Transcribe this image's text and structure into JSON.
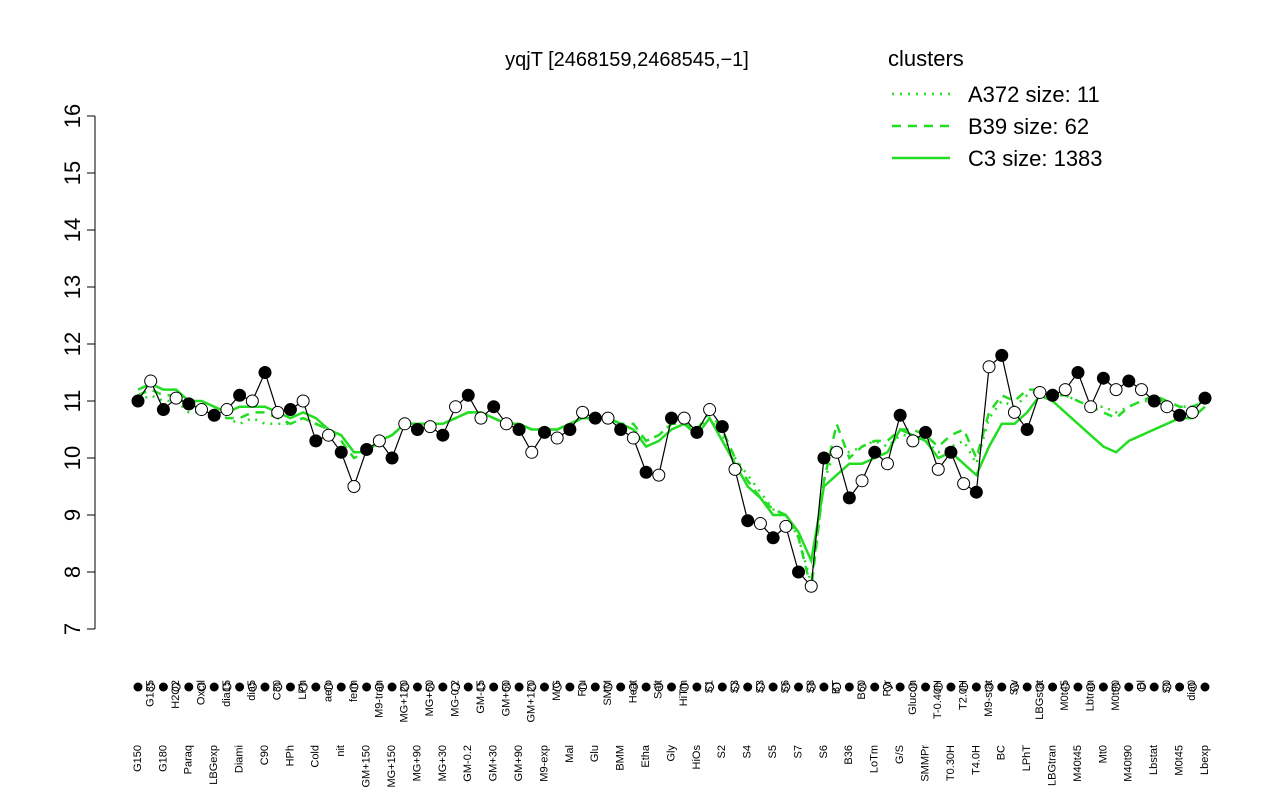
{
  "chart_data": {
    "type": "line",
    "title": "yqjT [2468159,2468545,−1]",
    "legend_title": "clusters",
    "legend_position": "top-right",
    "legend_color": "#22dd22",
    "point_colors": [
      "#000000",
      "#ffffff"
    ],
    "categories": [
      "G150",
      "G135",
      "G180",
      "H2O2",
      "Paraq",
      "Oxctl",
      "LBGexp",
      "dia15",
      "Diami",
      "dia5",
      "C90",
      "C30",
      "HPh",
      "LPh",
      "Cold",
      "aero",
      "nit",
      "ferm",
      "GM+150",
      "M9-tran",
      "MG+150",
      "MG+120",
      "MG+90",
      "MG+60",
      "MG+30",
      "MG-0.2",
      "GM-0.2",
      "GM-15",
      "GM+30",
      "GM+60",
      "GM+90",
      "GM+120",
      "M9-exp",
      "M/G",
      "Mal",
      "Fru",
      "Glu",
      "SMM",
      "BMM",
      "Heat",
      "Etha",
      "Salt",
      "Gly",
      "HiTm",
      "HiOs",
      "S1",
      "S2",
      "S3",
      "S4",
      "S3",
      "S5",
      "S6",
      "S7",
      "S8",
      "S6",
      "BT",
      "B36",
      "B60",
      "LoTm",
      "Pyr",
      "G/S",
      "Glucon",
      "SMMPr",
      "T-0.40H",
      "T0.30H",
      "T2.0H",
      "T4.0H",
      "M9-stat",
      "BC",
      "Sw",
      "LPhT",
      "LBGstat",
      "LBGtran",
      "M0t45",
      "M40t45",
      "Lbtran",
      "Mt0",
      "M0t90",
      "M40t90",
      "Bl",
      "Lbstat",
      "S0",
      "M0t45",
      "dia0",
      "Lbexp"
    ],
    "values": [
      11.0,
      11.35,
      10.85,
      11.05,
      10.95,
      10.85,
      10.75,
      10.85,
      11.1,
      11.0,
      11.5,
      10.8,
      10.85,
      11.0,
      10.3,
      10.4,
      10.1,
      9.5,
      10.15,
      10.3,
      10.0,
      10.6,
      10.5,
      10.55,
      10.4,
      10.9,
      11.1,
      10.7,
      10.9,
      10.6,
      10.5,
      10.1,
      10.45,
      10.35,
      10.5,
      10.8,
      10.7,
      10.7,
      10.5,
      10.35,
      9.75,
      9.7,
      10.7,
      10.7,
      10.45,
      10.85,
      10.55,
      9.8,
      8.9,
      8.85,
      8.6,
      8.8,
      8.0,
      7.75,
      10.0,
      10.1,
      9.3,
      9.6,
      10.1,
      9.9,
      10.75,
      10.3,
      10.45,
      9.8,
      10.1,
      9.55,
      9.4,
      11.6,
      11.8,
      10.8,
      10.5,
      11.15,
      11.1,
      11.2,
      11.5,
      10.9,
      11.4,
      11.2,
      11.35,
      11.2,
      11.0,
      10.9,
      10.75,
      10.8,
      11.05
    ],
    "series": [
      {
        "name": "A372 size: 11",
        "color": "#22dd22",
        "dash": "2,6",
        "values": [
          11.0,
          11.1,
          11.0,
          11.0,
          10.8,
          10.8,
          10.7,
          10.7,
          10.6,
          10.7,
          10.6,
          10.6,
          10.6,
          10.7,
          10.6,
          10.5,
          10.4,
          10.1,
          10.1,
          10.3,
          10.4,
          10.6,
          10.6,
          10.6,
          10.6,
          10.7,
          10.8,
          10.8,
          10.7,
          10.6,
          10.6,
          10.5,
          10.5,
          10.5,
          10.6,
          10.7,
          10.7,
          10.7,
          10.6,
          10.5,
          10.3,
          10.4,
          10.6,
          10.6,
          10.5,
          10.7,
          10.4,
          10.0,
          9.7,
          9.4,
          9.1,
          9.0,
          8.6,
          7.8,
          9.6,
          10.2,
          10.1,
          10.2,
          10.3,
          10.2,
          10.4,
          10.4,
          10.3,
          10.1,
          10.2,
          10.3,
          9.9,
          10.7,
          11.0,
          10.9,
          11.1,
          11.2,
          11.1,
          11.1,
          11.0,
          10.9,
          10.9,
          10.8,
          10.9,
          11.0,
          11.0,
          11.0,
          10.9,
          10.9,
          11.0
        ]
      },
      {
        "name": "B39 size: 62",
        "color": "#22dd22",
        "dash": "9,7",
        "values": [
          11.1,
          11.2,
          11.1,
          11.1,
          10.9,
          10.9,
          10.8,
          10.7,
          10.7,
          10.8,
          10.8,
          10.7,
          10.6,
          10.7,
          10.6,
          10.5,
          10.3,
          10.0,
          10.1,
          10.3,
          10.4,
          10.6,
          10.6,
          10.6,
          10.6,
          10.7,
          10.8,
          10.8,
          10.7,
          10.6,
          10.6,
          10.5,
          10.5,
          10.5,
          10.6,
          10.7,
          10.7,
          10.7,
          10.6,
          10.6,
          10.3,
          10.4,
          10.6,
          10.6,
          10.5,
          10.8,
          10.5,
          10.0,
          9.6,
          9.3,
          9.1,
          9.0,
          8.6,
          7.7,
          9.6,
          10.6,
          10.0,
          10.2,
          10.3,
          10.3,
          10.5,
          10.5,
          10.4,
          10.2,
          10.4,
          10.5,
          10.0,
          10.8,
          11.1,
          11.0,
          11.2,
          11.2,
          11.1,
          11.1,
          11.0,
          10.9,
          10.8,
          10.7,
          10.9,
          11.0,
          11.1,
          11.0,
          10.9,
          10.9,
          11.0
        ]
      },
      {
        "name": "C3 size: 1383",
        "color": "#22dd22",
        "dash": "",
        "values": [
          11.2,
          11.3,
          11.2,
          11.2,
          11.0,
          11.0,
          10.9,
          10.8,
          10.9,
          10.9,
          10.9,
          10.8,
          10.7,
          10.8,
          10.7,
          10.5,
          10.4,
          10.1,
          10.1,
          10.3,
          10.4,
          10.6,
          10.6,
          10.6,
          10.6,
          10.7,
          10.8,
          10.8,
          10.7,
          10.6,
          10.6,
          10.5,
          10.5,
          10.5,
          10.6,
          10.7,
          10.7,
          10.7,
          10.6,
          10.5,
          10.2,
          10.3,
          10.5,
          10.6,
          10.4,
          10.7,
          10.3,
          9.9,
          9.5,
          9.3,
          9.0,
          9.0,
          8.7,
          8.2,
          9.5,
          9.7,
          9.9,
          9.9,
          10.0,
          10.1,
          10.5,
          10.4,
          10.3,
          10.0,
          10.1,
          9.9,
          9.7,
          10.2,
          10.6,
          10.6,
          10.8,
          11.1,
          11.0,
          10.8,
          10.6,
          10.4,
          10.2,
          10.1,
          10.3,
          10.4,
          10.5,
          10.6,
          10.7,
          10.7,
          10.9
        ]
      }
    ],
    "ylim": [
      7,
      16
    ],
    "yticks": [
      7,
      8,
      9,
      10,
      11,
      12,
      13,
      14,
      15,
      16
    ]
  }
}
